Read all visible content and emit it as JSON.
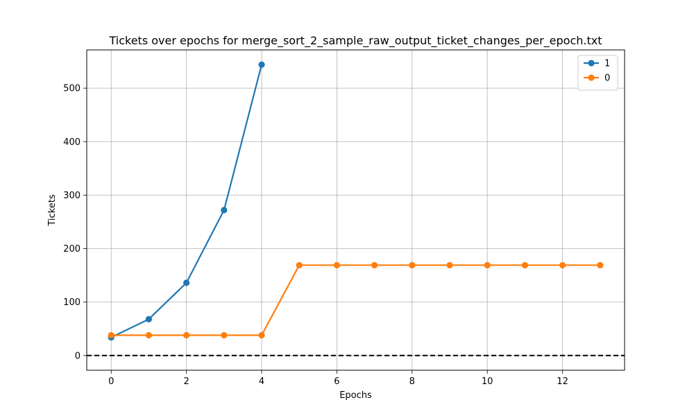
{
  "chart_data": {
    "type": "line",
    "title": "Tickets over epochs for merge_sort_2_sample_raw_output_ticket_changes_per_epoch.txt",
    "xlabel": "Epochs",
    "ylabel": "Tickets",
    "xlim": [
      -0.65,
      13.65
    ],
    "ylim": [
      -27.5,
      571.5
    ],
    "xticks": [
      0,
      2,
      4,
      6,
      8,
      10,
      12
    ],
    "yticks": [
      0,
      100,
      200,
      300,
      400,
      500
    ],
    "grid": true,
    "legend_position": "top-right",
    "reference_line": {
      "y": 0,
      "style": "dashed",
      "color": "#000000"
    },
    "series": [
      {
        "name": "1",
        "color": "#1f77b4",
        "x": [
          0,
          1,
          2,
          3,
          4
        ],
        "values": [
          34,
          68,
          136,
          272,
          544
        ]
      },
      {
        "name": "0",
        "color": "#ff7f0e",
        "x": [
          0,
          1,
          2,
          3,
          4,
          5,
          6,
          7,
          8,
          9,
          10,
          11,
          12,
          13
        ],
        "values": [
          38,
          38,
          38,
          38,
          38,
          169,
          169,
          169,
          169,
          169,
          169,
          169,
          169,
          169
        ]
      }
    ]
  }
}
